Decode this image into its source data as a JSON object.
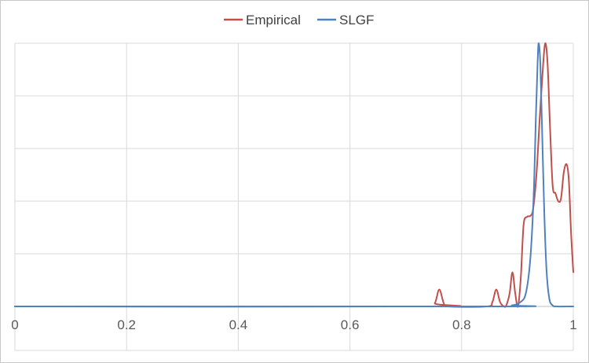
{
  "chart_data": {
    "type": "line",
    "title": "",
    "xlabel": "",
    "ylabel": "",
    "xlim": [
      0,
      1
    ],
    "ylim": [
      0,
      5
    ],
    "x_ticks": [
      0,
      0.2,
      0.4,
      0.6,
      0.8,
      1
    ],
    "x_tick_labels": [
      "0",
      "0.2",
      "0.4",
      "0.6",
      "0.8",
      "1"
    ],
    "y_gridlines": [
      0,
      1,
      2,
      3,
      4,
      5
    ],
    "y_tick_labels_visible": false,
    "grid": true,
    "legend_position": "top-center",
    "series": [
      {
        "name": "Empirical",
        "color": "#c0504d",
        "points": [
          [
            0.0,
            0.0
          ],
          [
            0.74,
            0.0
          ],
          [
            0.752,
            0.06
          ],
          [
            0.76,
            0.32
          ],
          [
            0.768,
            0.06
          ],
          [
            0.775,
            0.0
          ],
          [
            0.845,
            0.0
          ],
          [
            0.855,
            0.08
          ],
          [
            0.862,
            0.32
          ],
          [
            0.869,
            0.08
          ],
          [
            0.876,
            0.0
          ],
          [
            0.88,
            0.02
          ],
          [
            0.886,
            0.25
          ],
          [
            0.891,
            0.65
          ],
          [
            0.896,
            0.25
          ],
          [
            0.901,
            0.0
          ],
          [
            0.906,
            0.55
          ],
          [
            0.911,
            1.55
          ],
          [
            0.917,
            1.7
          ],
          [
            0.923,
            1.72
          ],
          [
            0.928,
            1.85
          ],
          [
            0.934,
            2.5
          ],
          [
            0.94,
            3.6
          ],
          [
            0.946,
            4.6
          ],
          [
            0.95,
            5.0
          ],
          [
            0.954,
            4.6
          ],
          [
            0.958,
            3.5
          ],
          [
            0.963,
            2.3
          ],
          [
            0.968,
            2.15
          ],
          [
            0.973,
            2.0
          ],
          [
            0.978,
            2.05
          ],
          [
            0.983,
            2.55
          ],
          [
            0.988,
            2.7
          ],
          [
            0.992,
            2.4
          ],
          [
            0.996,
            1.4
          ],
          [
            1.0,
            0.65
          ]
        ]
      },
      {
        "name": "SLGF",
        "color": "#4f81bd",
        "points": [
          [
            0.0,
            0.0
          ],
          [
            0.86,
            0.0
          ],
          [
            0.89,
            0.02
          ],
          [
            0.905,
            0.08
          ],
          [
            0.915,
            0.25
          ],
          [
            0.923,
            0.9
          ],
          [
            0.929,
            2.1
          ],
          [
            0.933,
            3.6
          ],
          [
            0.936,
            4.6
          ],
          [
            0.938,
            5.0
          ],
          [
            0.941,
            4.6
          ],
          [
            0.944,
            3.4
          ],
          [
            0.948,
            1.8
          ],
          [
            0.952,
            0.7
          ],
          [
            0.957,
            0.15
          ],
          [
            0.963,
            0.02
          ],
          [
            0.97,
            0.0
          ],
          [
            1.0,
            0.0
          ]
        ]
      }
    ]
  }
}
